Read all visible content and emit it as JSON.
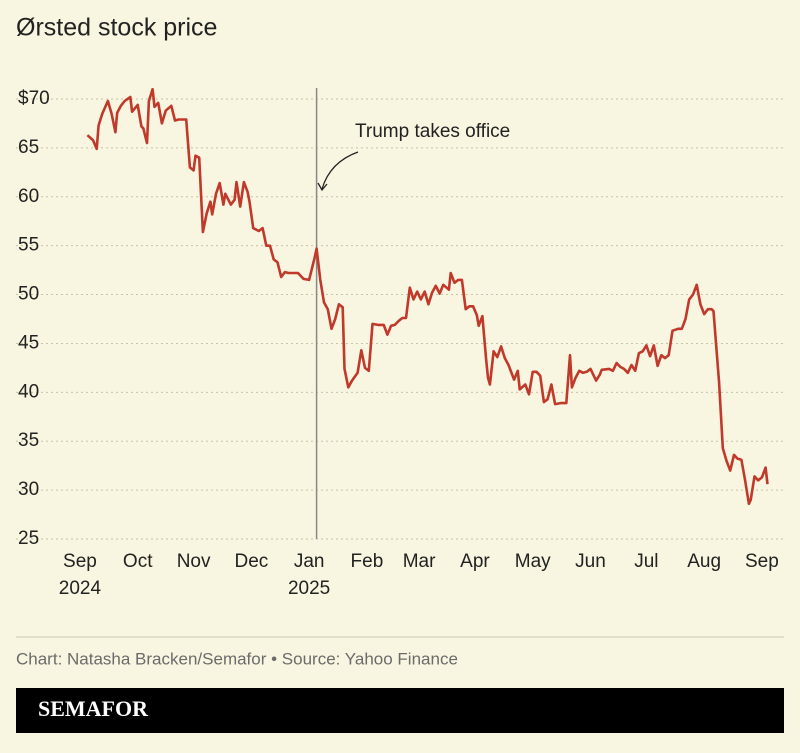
{
  "chart_data": {
    "type": "line",
    "title": "Ørsted stock price",
    "x": [
      19,
      22,
      24,
      25,
      27,
      30,
      32,
      34,
      35,
      37,
      39,
      42,
      43,
      46,
      48,
      49,
      51,
      52,
      54,
      55,
      57,
      59,
      61,
      64,
      66,
      68,
      72,
      74,
      76,
      77,
      79,
      81,
      83,
      85,
      86,
      88,
      90,
      92,
      93,
      96,
      98,
      99,
      101,
      103,
      105,
      106,
      108,
      111,
      113,
      115,
      117,
      119,
      121,
      123,
      125,
      127,
      132,
      135,
      138,
      141,
      142,
      144,
      146,
      148,
      150,
      152,
      154,
      156,
      157,
      159,
      161,
      164,
      166,
      168,
      170,
      172,
      175,
      178,
      180,
      182,
      184,
      186,
      188,
      190,
      192,
      194,
      196,
      198,
      200,
      202,
      204,
      206,
      208,
      210,
      213,
      214,
      216,
      218,
      220,
      222,
      224,
      226,
      228,
      229,
      231,
      233,
      234,
      235,
      237,
      239,
      241,
      243,
      245,
      248,
      250,
      251,
      254,
      256,
      258,
      260,
      262,
      264,
      266,
      268,
      270,
      273,
      276,
      278,
      279,
      281,
      283,
      285,
      287,
      289,
      292,
      294,
      295,
      299,
      301,
      303,
      305,
      307,
      309,
      311,
      313,
      315,
      317,
      319,
      321,
      323,
      325,
      327,
      329,
      331,
      333,
      336,
      338,
      340,
      342,
      344,
      346,
      348,
      350,
      352,
      354,
      355,
      358,
      360,
      362,
      364,
      366,
      368,
      370,
      372,
      374,
      375,
      377,
      379,
      381,
      383,
      384
    ],
    "values": [
      66.3,
      65.8,
      64.9,
      67.3,
      68.5,
      69.8,
      68.5,
      66.6,
      68.6,
      69.3,
      69.8,
      70.2,
      68.7,
      69.4,
      67.2,
      67.0,
      65.5,
      69.8,
      71.0,
      69.2,
      69.6,
      67.5,
      68.8,
      69.3,
      67.8,
      67.9,
      67.9,
      63.0,
      62.7,
      64.2,
      64.0,
      56.4,
      58.3,
      59.5,
      58.2,
      60.3,
      61.4,
      59.2,
      60.3,
      59.2,
      59.7,
      61.5,
      59.0,
      61.5,
      60.5,
      59.5,
      56.8,
      56.5,
      56.8,
      55.0,
      55.0,
      53.6,
      53.3,
      51.8,
      52.3,
      52.2,
      52.2,
      51.6,
      51.5,
      53.8,
      54.7,
      51.5,
      49.2,
      48.5,
      46.5,
      47.5,
      49.0,
      48.7,
      42.4,
      40.5,
      41.2,
      42.0,
      44.3,
      42.5,
      42.2,
      47.0,
      46.9,
      46.9,
      45.9,
      46.8,
      46.9,
      47.3,
      47.6,
      47.6,
      50.7,
      49.5,
      50.3,
      49.5,
      50.3,
      49.0,
      50.2,
      50.9,
      50.1,
      51.0,
      50.5,
      52.2,
      51.2,
      51.5,
      51.5,
      48.5,
      48.8,
      48.8,
      47.9,
      46.8,
      47.8,
      43.4,
      41.5,
      40.8,
      44.2,
      43.6,
      44.7,
      43.5,
      42.8,
      41.3,
      42.2,
      40.3,
      40.8,
      39.8,
      42.1,
      42.1,
      41.7,
      39.0,
      39.3,
      40.8,
      38.8,
      38.9,
      38.9,
      43.8,
      40.5,
      41.5,
      42.2,
      42.0,
      42.1,
      42.4,
      41.2,
      41.8,
      42.3,
      42.4,
      42.2,
      43.0,
      42.6,
      42.4,
      42.0,
      42.8,
      42.2,
      44.0,
      44.2,
      44.8,
      43.7,
      44.8,
      42.7,
      43.8,
      43.5,
      43.8,
      46.3,
      46.5,
      46.5,
      47.5,
      49.5,
      50.0,
      51.0,
      49.0,
      48.0,
      48.5,
      48.5,
      48.3,
      41.0,
      34.3,
      33.0,
      32.0,
      33.6,
      33.2,
      33.1,
      31.0,
      28.6,
      29.0,
      31.4,
      31.0,
      31.3,
      32.3,
      30.6
    ],
    "color": "#c0392b",
    "xlim": [
      0,
      395
    ],
    "xticks": [
      {
        "value": 15,
        "label": "Sep"
      },
      {
        "value": 46,
        "label": "Oct"
      },
      {
        "value": 76,
        "label": "Nov"
      },
      {
        "value": 107,
        "label": "Dec"
      },
      {
        "value": 138,
        "label": "Jan"
      },
      {
        "value": 169,
        "label": "Feb"
      },
      {
        "value": 197,
        "label": "Mar"
      },
      {
        "value": 227,
        "label": "Apr"
      },
      {
        "value": 258,
        "label": "May"
      },
      {
        "value": 289,
        "label": "Jun"
      },
      {
        "value": 319,
        "label": "Jul"
      },
      {
        "value": 350,
        "label": "Aug"
      },
      {
        "value": 381,
        "label": "Sep"
      }
    ],
    "year_labels": [
      {
        "value": 15,
        "label": "2024"
      },
      {
        "value": 138,
        "label": "2025"
      }
    ],
    "ylim": [
      25,
      70
    ],
    "yticks": [
      25,
      30,
      35,
      40,
      45,
      50,
      55,
      60,
      65,
      {
        "value": 70,
        "label": "$70"
      }
    ],
    "grid": true,
    "annotation": {
      "value": 142,
      "label": "Trump takes office"
    },
    "footer": "Chart: Natasha Bracken/Semafor • Source: Yahoo Finance",
    "brand": "SEMAFOR"
  }
}
